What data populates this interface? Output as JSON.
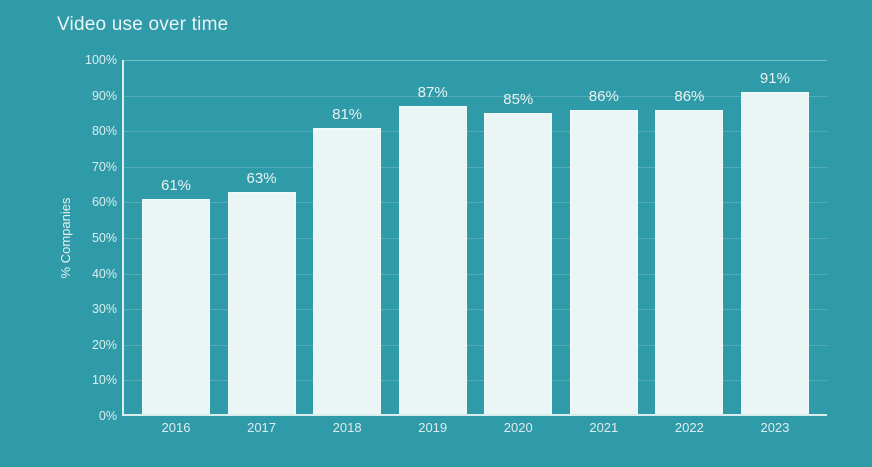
{
  "chart_data": {
    "type": "bar",
    "title": "Video use over time",
    "categories": [
      "2016",
      "2017",
      "2018",
      "2019",
      "2020",
      "2021",
      "2022",
      "2023"
    ],
    "values": [
      61,
      63,
      81,
      87,
      85,
      86,
      86,
      91
    ],
    "value_labels": [
      "61%",
      "63%",
      "81%",
      "87%",
      "85%",
      "86%",
      "86%",
      "91%"
    ],
    "xlabel": "",
    "ylabel": "% Companies",
    "ylim": [
      0,
      100
    ],
    "ytick_step": 10,
    "ytick_labels": [
      "0%",
      "10%",
      "20%",
      "30%",
      "40%",
      "50%",
      "60%",
      "70%",
      "80%",
      "90%",
      "100%"
    ],
    "grid": true,
    "legend_position": "none",
    "colors": {
      "background": "#2F9AA8",
      "bar_fill": "#EAF6F6",
      "bar_border": "rgba(255,255,255,0.35)",
      "gridline": "#55ACB7",
      "gridline_top": "#79BCC5",
      "axis": "#D9EDEF",
      "title_text": "#EAF4F4",
      "value_text": "#E7F2F2",
      "tick_text": "#DDEDEE"
    }
  }
}
